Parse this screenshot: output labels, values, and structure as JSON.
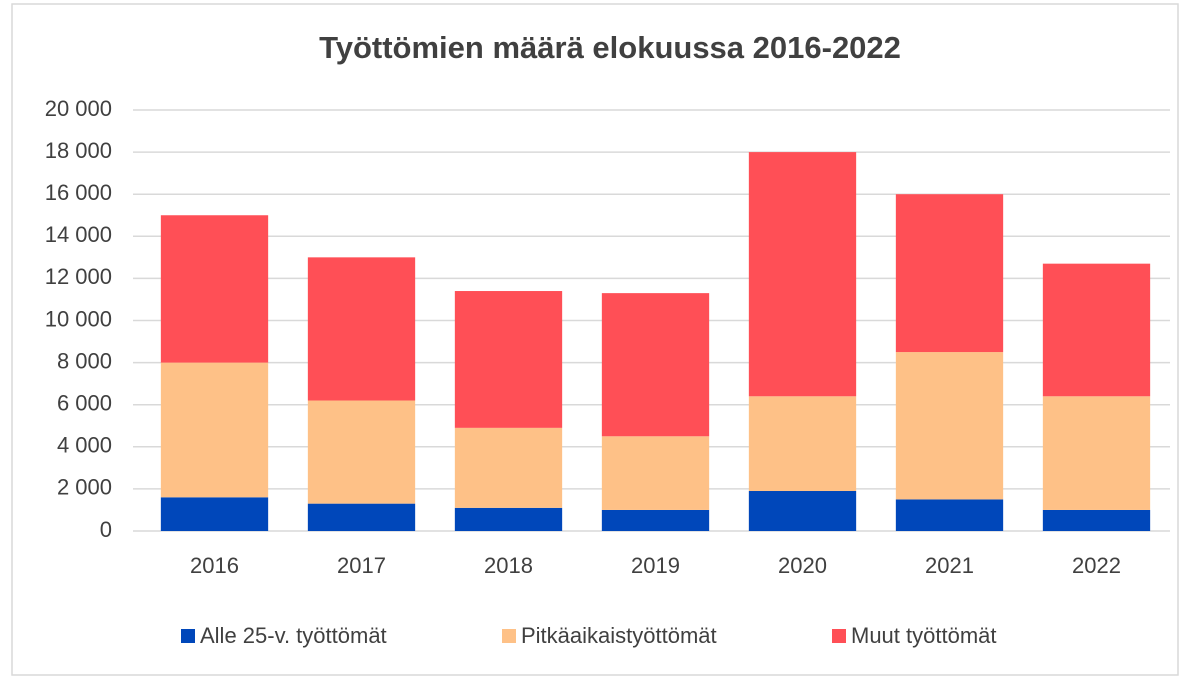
{
  "chart_data": {
    "type": "stacked_bar",
    "title": "Työttömien määrä elokuussa 2016-2022",
    "categories": [
      "2016",
      "2017",
      "2018",
      "2019",
      "2020",
      "2021",
      "2022"
    ],
    "series": [
      {
        "name": "Alle 25-v. työttömät",
        "color": "#0047ba",
        "values": [
          1600,
          1300,
          1100,
          1000,
          1900,
          1500,
          1000
        ]
      },
      {
        "name": "Pitkäaikaistyöttömät",
        "color": "#fec187",
        "values": [
          6400,
          4900,
          3800,
          3500,
          4500,
          7000,
          5400
        ]
      },
      {
        "name": "Muut työttömät",
        "color": "#ff4f56",
        "values": [
          7000,
          6800,
          6500,
          6800,
          11600,
          7500,
          6300
        ]
      }
    ],
    "ylim": [
      0,
      20000
    ],
    "yticks": [
      0,
      {
        "value": 2000,
        "label": "2 000"
      },
      {
        "value": 4000,
        "label": "4 000"
      },
      {
        "value": 6000,
        "label": "6 000"
      },
      {
        "value": 8000,
        "label": "8 000"
      },
      {
        "value": 10000,
        "label": "10 000"
      },
      {
        "value": 12000,
        "label": "12 000"
      },
      {
        "value": 14000,
        "label": "14 000"
      },
      {
        "value": 16000,
        "label": "16 000"
      },
      {
        "value": 18000,
        "label": "18 000"
      },
      {
        "value": 20000,
        "label": "20 000"
      }
    ],
    "grid": true,
    "legend": "bottom"
  }
}
